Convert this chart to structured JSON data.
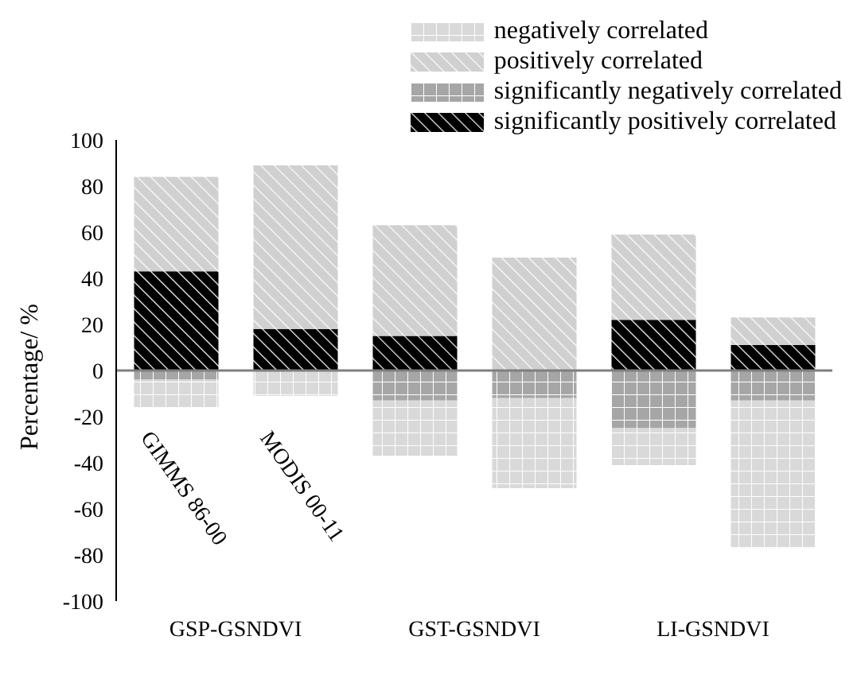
{
  "chart_data": {
    "type": "bar",
    "stacked": true,
    "ylabel": "Percentage/ %",
    "categories": [
      "GSP-GSNDVI",
      null,
      "GST-GSNDVI",
      null,
      "LI-GSNDVI",
      null
    ],
    "series": [
      {
        "name": "significantly positively correlated",
        "color": "#000000",
        "values": [
          43,
          18,
          15,
          null,
          22,
          11
        ]
      },
      {
        "name": "significantly negatively correlated",
        "color": "#a6a6a6",
        "values": [
          -4,
          null,
          -13,
          -12,
          -25,
          -13
        ]
      },
      {
        "name": "positively correlated",
        "color": "#d0d0d0",
        "values": [
          41,
          71,
          48,
          49,
          37,
          12
        ]
      },
      {
        "name": "negatively correlated",
        "color": "#d9d9d9",
        "values": [
          -12,
          -11,
          -24,
          -39,
          -16,
          -64
        ]
      }
    ],
    "ylim": [
      -100,
      100
    ],
    "yticks": [
      -100,
      -80,
      -60,
      -40,
      -20,
      0,
      20,
      40,
      60,
      80,
      100
    ],
    "ref_lines": [
      {
        "axis": "y",
        "value": 0,
        "color": "#7f7f7f"
      }
    ],
    "annotations": [
      "GIMMS 86-00",
      "MODIS 00-11"
    ],
    "grid": false,
    "legend": "top right"
  }
}
